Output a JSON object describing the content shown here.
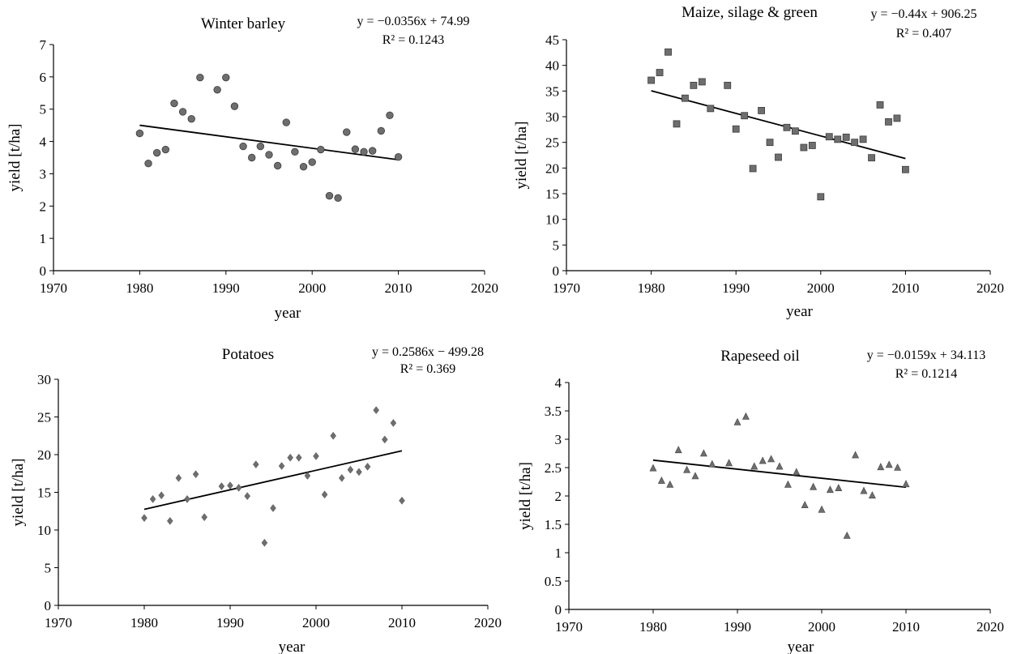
{
  "chart_data": [
    {
      "type": "scatter",
      "title": "Winter barley",
      "xlabel": "year",
      "ylabel": "yield [t/ha]",
      "xlim": [
        1970,
        2020
      ],
      "ylim": [
        0,
        7
      ],
      "xticks": [
        1970,
        1980,
        1990,
        2000,
        2010,
        2020
      ],
      "yticks": [
        0,
        1,
        2,
        3,
        4,
        5,
        6,
        7
      ],
      "marker": "circle",
      "marker_color": "#6e6e6e",
      "trendline": {
        "slope": -0.0356,
        "intercept": 74.99,
        "x_range": [
          1980,
          2010
        ]
      },
      "equation": "y = −0.0356x + 74.99",
      "r2_label": "R² = 0.1243",
      "x": [
        1980,
        1981,
        1982,
        1983,
        1984,
        1985,
        1986,
        1987,
        1989,
        1990,
        1991,
        1992,
        1993,
        1994,
        1995,
        1996,
        1997,
        1998,
        1999,
        2000,
        2001,
        2002,
        2003,
        2004,
        2005,
        2006,
        2007,
        2008,
        2009,
        2010
      ],
      "y": [
        4.25,
        3.32,
        3.65,
        3.75,
        5.18,
        4.92,
        4.7,
        5.98,
        5.6,
        5.98,
        5.09,
        3.85,
        3.5,
        3.85,
        3.59,
        3.25,
        4.59,
        3.68,
        3.22,
        3.36,
        3.75,
        2.32,
        2.25,
        4.29,
        3.76,
        3.68,
        3.71,
        4.33,
        4.81,
        3.52
      ]
    },
    {
      "type": "scatter",
      "title": "Maize, silage & green",
      "xlabel": "year",
      "ylabel": "yield [t/ha]",
      "xlim": [
        1970,
        2020
      ],
      "ylim": [
        0,
        45
      ],
      "xticks": [
        1970,
        1980,
        1990,
        2000,
        2010,
        2020
      ],
      "yticks": [
        0,
        5,
        10,
        15,
        20,
        25,
        30,
        35,
        40,
        45
      ],
      "marker": "square",
      "marker_color": "#6e6e6e",
      "trendline": {
        "slope": -0.44,
        "intercept": 906.25,
        "x_range": [
          1980,
          2010
        ]
      },
      "equation": "y = −0.44x + 906.25",
      "r2_label": "R² = 0.407",
      "x": [
        1980,
        1981,
        1982,
        1983,
        1984,
        1985,
        1986,
        1987,
        1989,
        1990,
        1991,
        1992,
        1993,
        1994,
        1995,
        1996,
        1997,
        1998,
        1999,
        2000,
        2001,
        2002,
        2003,
        2004,
        2005,
        2006,
        2007,
        2008,
        2009,
        2010
      ],
      "y": [
        37.1,
        38.6,
        42.6,
        28.6,
        33.6,
        36.1,
        36.8,
        31.6,
        36.1,
        27.6,
        30.2,
        19.9,
        31.2,
        25.0,
        22.1,
        27.9,
        27.2,
        24.0,
        24.4,
        14.4,
        26.1,
        25.6,
        26.0,
        25.0,
        25.6,
        22.0,
        32.3,
        29.0,
        29.7,
        19.7
      ]
    },
    {
      "type": "scatter",
      "title": "Potatoes",
      "xlabel": "year",
      "ylabel": "yield [t/ha]",
      "xlim": [
        1970,
        2020
      ],
      "ylim": [
        0,
        30
      ],
      "xticks": [
        1970,
        1980,
        1990,
        2000,
        2010,
        2020
      ],
      "yticks": [
        0,
        5,
        10,
        15,
        20,
        25,
        30
      ],
      "marker": "diamond",
      "marker_color": "#6e6e6e",
      "trendline": {
        "slope": 0.2586,
        "intercept": -499.28,
        "x_range": [
          1980,
          2010
        ]
      },
      "equation": "y = 0.2586x − 499.28",
      "r2_label": "R² = 0.369",
      "x": [
        1980,
        1981,
        1982,
        1983,
        1984,
        1985,
        1986,
        1987,
        1989,
        1990,
        1991,
        1992,
        1993,
        1994,
        1995,
        1996,
        1997,
        1998,
        1999,
        2000,
        2001,
        2002,
        2003,
        2004,
        2005,
        2006,
        2007,
        2008,
        2009,
        2010
      ],
      "y": [
        11.6,
        14.1,
        14.6,
        11.2,
        16.9,
        14.1,
        17.4,
        11.7,
        15.8,
        15.9,
        15.6,
        14.5,
        18.7,
        8.3,
        12.9,
        18.5,
        19.6,
        19.6,
        17.2,
        19.8,
        14.7,
        22.5,
        16.9,
        18.0,
        17.7,
        18.4,
        25.9,
        22.0,
        24.2,
        13.9
      ]
    },
    {
      "type": "scatter",
      "title": "Rapeseed oil",
      "xlabel": "year",
      "ylabel": "yield [t/ha]",
      "xlim": [
        1970,
        2020
      ],
      "ylim": [
        0,
        4
      ],
      "xticks": [
        1970,
        1980,
        1990,
        2000,
        2010,
        2020
      ],
      "yticks": [
        0,
        0.5,
        1,
        1.5,
        2,
        2.5,
        3,
        3.5,
        4
      ],
      "marker": "triangle",
      "marker_color": "#6e6e6e",
      "trendline": {
        "slope": -0.0159,
        "intercept": 34.113,
        "x_range": [
          1980,
          2010
        ]
      },
      "equation": "y = −0.0159x + 34.113",
      "r2_label": "R² = 0.1214",
      "x": [
        1980,
        1981,
        1982,
        1983,
        1984,
        1985,
        1986,
        1987,
        1989,
        1990,
        1991,
        1992,
        1993,
        1994,
        1995,
        1996,
        1997,
        1998,
        1999,
        2000,
        2001,
        2002,
        2003,
        2004,
        2005,
        2006,
        2007,
        2008,
        2009,
        2010
      ],
      "y": [
        2.49,
        2.27,
        2.2,
        2.81,
        2.46,
        2.35,
        2.75,
        2.56,
        2.58,
        3.3,
        3.4,
        2.52,
        2.62,
        2.65,
        2.52,
        2.2,
        2.42,
        1.84,
        2.16,
        1.76,
        2.11,
        2.14,
        1.3,
        2.72,
        2.09,
        2.01,
        2.51,
        2.55,
        2.5,
        2.21
      ]
    }
  ]
}
